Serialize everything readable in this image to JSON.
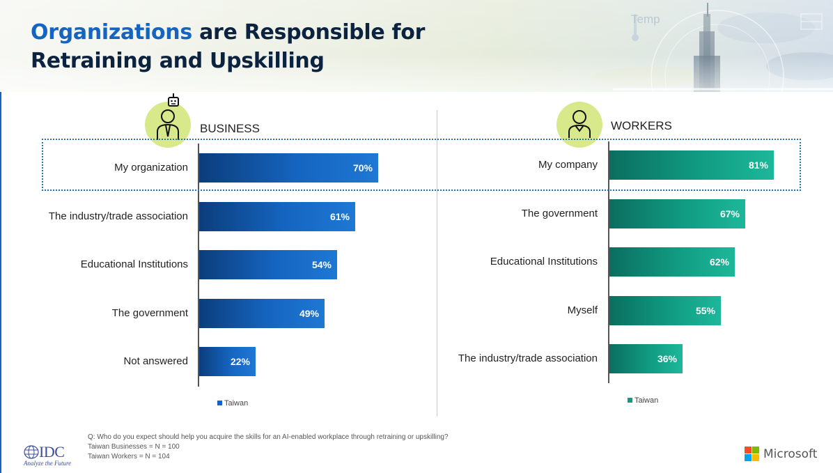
{
  "header": {
    "title_accent": "Organizations",
    "title_rest_line1": " are Responsible for",
    "title_line2": "Retraining and Upskilling",
    "temp_label": "Temp"
  },
  "colors": {
    "business_bar": "#1565c0",
    "workers_bar": "#119c82",
    "title_accent": "#1565c0",
    "title_dark": "#0c2340",
    "icon_circle": "#d7e98a"
  },
  "icons": {
    "business": "businessman-robot-icon",
    "workers": "worker-icon"
  },
  "chart_data": [
    {
      "type": "bar",
      "orientation": "horizontal",
      "title": "BUSINESS",
      "categories": [
        "My organization",
        "The industry/trade association",
        "Educational Institutions",
        "The government",
        "Not answered"
      ],
      "series": [
        {
          "name": "Taiwan",
          "values": [
            70,
            61,
            54,
            49,
            22
          ]
        }
      ],
      "value_labels": [
        "70%",
        "61%",
        "54%",
        "49%",
        "22%"
      ],
      "xlim": [
        0,
        100
      ],
      "grid": false,
      "legend": "bottom"
    },
    {
      "type": "bar",
      "orientation": "horizontal",
      "title": "WORKERS",
      "categories": [
        "My company",
        "The government",
        "Educational Institutions",
        "Myself",
        "The industry/trade association"
      ],
      "series": [
        {
          "name": "Taiwan",
          "values": [
            81,
            67,
            62,
            55,
            36
          ]
        }
      ],
      "value_labels": [
        "81%",
        "67%",
        "62%",
        "55%",
        "36%"
      ],
      "xlim": [
        0,
        100
      ],
      "grid": false,
      "legend": "bottom"
    }
  ],
  "footnote": {
    "question": "Q: Who do you expect should help you acquire the skills for an AI-enabled workplace through retraining or upskilling?",
    "business_n": "Taiwan Businesses = N = 100",
    "workers_n": "Taiwan Workers = N = 104"
  },
  "logos": {
    "idc_word": "IDC",
    "idc_tagline": "Analyze the Future",
    "microsoft_word": "Microsoft"
  }
}
